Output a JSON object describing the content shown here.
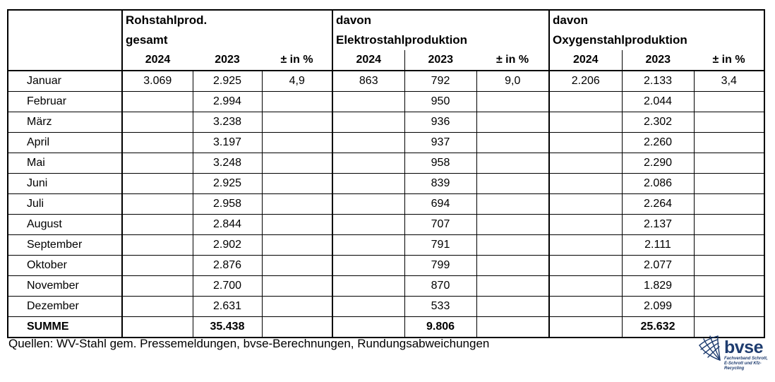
{
  "chart_data": {
    "type": "table",
    "row_label_header": "",
    "groups": [
      {
        "line1": "Rohstahlprod.",
        "line2": "gesamt"
      },
      {
        "line1": "davon",
        "line2": "Elektrostahlproduktion"
      },
      {
        "line1": "davon",
        "line2": "Oxygenstahlproduktion"
      }
    ],
    "sub_columns": [
      "2024",
      "2023",
      "± in %"
    ],
    "rows": [
      {
        "label": "Januar",
        "bold": false,
        "values": [
          "3.069",
          "2.925",
          "4,9",
          "863",
          "792",
          "9,0",
          "2.206",
          "2.133",
          "3,4"
        ]
      },
      {
        "label": "Februar",
        "bold": false,
        "values": [
          "",
          "2.994",
          "",
          "",
          "950",
          "",
          "",
          "2.044",
          ""
        ]
      },
      {
        "label": "März",
        "bold": false,
        "values": [
          "",
          "3.238",
          "",
          "",
          "936",
          "",
          "",
          "2.302",
          ""
        ]
      },
      {
        "label": "April",
        "bold": false,
        "values": [
          "",
          "3.197",
          "",
          "",
          "937",
          "",
          "",
          "2.260",
          ""
        ]
      },
      {
        "label": "Mai",
        "bold": false,
        "values": [
          "",
          "3.248",
          "",
          "",
          "958",
          "",
          "",
          "2.290",
          ""
        ]
      },
      {
        "label": "Juni",
        "bold": false,
        "values": [
          "",
          "2.925",
          "",
          "",
          "839",
          "",
          "",
          "2.086",
          ""
        ]
      },
      {
        "label": "Juli",
        "bold": false,
        "values": [
          "",
          "2.958",
          "",
          "",
          "694",
          "",
          "",
          "2.264",
          ""
        ]
      },
      {
        "label": "August",
        "bold": false,
        "values": [
          "",
          "2.844",
          "",
          "",
          "707",
          "",
          "",
          "2.137",
          ""
        ]
      },
      {
        "label": "September",
        "bold": false,
        "values": [
          "",
          "2.902",
          "",
          "",
          "791",
          "",
          "",
          "2.111",
          ""
        ]
      },
      {
        "label": "Oktober",
        "bold": false,
        "values": [
          "",
          "2.876",
          "",
          "",
          "799",
          "",
          "",
          "2.077",
          ""
        ]
      },
      {
        "label": "November",
        "bold": false,
        "values": [
          "",
          "2.700",
          "",
          "",
          "870",
          "",
          "",
          "1.829",
          ""
        ]
      },
      {
        "label": "Dezember",
        "bold": false,
        "values": [
          "",
          "2.631",
          "",
          "",
          "533",
          "",
          "",
          "2.099",
          ""
        ]
      },
      {
        "label": "SUMME",
        "bold": true,
        "values": [
          "",
          "35.438",
          "",
          "",
          "9.806",
          "",
          "",
          "25.632",
          ""
        ]
      }
    ]
  },
  "footer": {
    "source_text": "Quellen: WV-Stahl gem. Pressemeldungen, bvse-Berechnungen, Rundungsabweichungen"
  },
  "logo": {
    "name": "bvse",
    "tagline_line1": "Fachverband Schrott,",
    "tagline_line2": "E-Schrott und Kfz-Recycling",
    "color": "#1e3c6f"
  }
}
